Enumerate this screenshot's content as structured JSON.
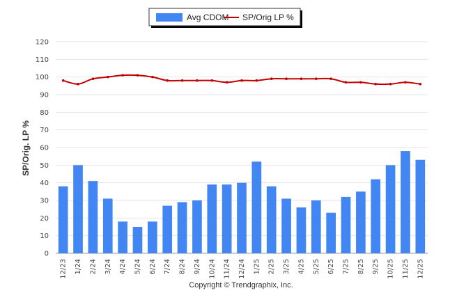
{
  "chart_data": {
    "type": "bar",
    "title": "",
    "ylabel": "SP/Orig. LP %",
    "xlabel": "",
    "ylim": [
      0,
      120
    ],
    "yticks": [
      "0",
      "10",
      "20",
      "30",
      "40",
      "50",
      "60",
      "70",
      "80",
      "90",
      "100",
      "110",
      "120"
    ],
    "grid": true,
    "legend_position": "top-center",
    "categories": [
      "12/23",
      "1/24",
      "2/24",
      "3/24",
      "4/24",
      "5/24",
      "6/24",
      "7/24",
      "8/24",
      "9/24",
      "10/24",
      "11/24",
      "12/24",
      "1/25",
      "2/25",
      "3/25",
      "4/25",
      "5/25",
      "6/25",
      "7/25",
      "8/25",
      "9/25",
      "10/25",
      "11/25",
      "12/25"
    ],
    "series": [
      {
        "name": "Avg CDOM",
        "type": "bar",
        "color": "#4286f4",
        "values": [
          38,
          50,
          41,
          31,
          18,
          15,
          18,
          27,
          29,
          30,
          39,
          39,
          40,
          52,
          38,
          31,
          26,
          30,
          23,
          32,
          35,
          42,
          50,
          58,
          53
        ]
      },
      {
        "name": "SP/Orig LP %",
        "type": "line",
        "color": "#c00000",
        "values": [
          98,
          96,
          99,
          100,
          101,
          101,
          100,
          98,
          98,
          98,
          98,
          97,
          98,
          98,
          99,
          99,
          99,
          99,
          99,
          97,
          97,
          96,
          96,
          97,
          96
        ]
      }
    ]
  },
  "footer": {
    "copyright": "Copyright © Trendgraphix, Inc."
  }
}
